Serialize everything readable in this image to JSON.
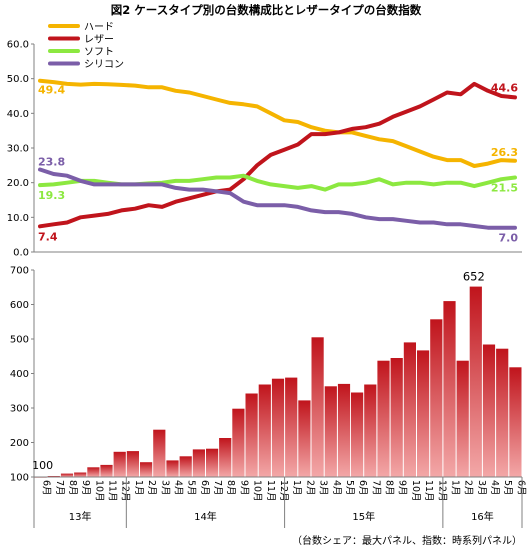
{
  "title": "図2 ケースタイプ別の台数構成比とレザータイプの台数指数",
  "note": "（台数シェア：最大パネル、指数：時系列パネル）",
  "chart_data": [
    {
      "type": "line",
      "ylim": [
        0,
        60
      ],
      "yticks": [
        "0.0",
        "10.0",
        "20.0",
        "30.0",
        "40.0",
        "50.0",
        "60.0"
      ],
      "legend_position": "top-left",
      "series": [
        {
          "name": "ハード",
          "color": "#F5B400",
          "values": [
            49.4,
            49.0,
            48.5,
            48.3,
            48.5,
            48.4,
            48.2,
            48.0,
            47.5,
            47.5,
            46.5,
            46.0,
            45.0,
            44.0,
            43.0,
            42.6,
            42.0,
            40.0,
            38.0,
            37.5,
            36.0,
            35.0,
            34.5,
            34.5,
            33.5,
            32.5,
            32.0,
            30.5,
            29.0,
            27.5,
            26.5,
            26.5,
            24.8,
            25.5,
            26.5,
            26.3
          ],
          "start_label": "49.4",
          "end_label": "26.3"
        },
        {
          "name": "レザー",
          "color": "#C0141C",
          "values": [
            7.4,
            8.0,
            8.5,
            10.0,
            10.5,
            11.0,
            12.0,
            12.5,
            13.5,
            13.0,
            14.5,
            15.5,
            16.5,
            17.5,
            18.0,
            21.0,
            25.0,
            28.0,
            29.5,
            31.0,
            34.0,
            34.0,
            34.5,
            35.5,
            36.0,
            37.0,
            39.0,
            40.5,
            42.0,
            44.0,
            46.0,
            45.5,
            48.5,
            46.5,
            45.0,
            44.6
          ],
          "start_label": "7.4",
          "end_label": "44.6"
        },
        {
          "name": "ソフト",
          "color": "#8CE840",
          "values": [
            19.3,
            19.5,
            20.0,
            20.5,
            20.5,
            20.0,
            19.5,
            19.5,
            19.8,
            20.0,
            20.5,
            20.5,
            21.0,
            21.5,
            21.5,
            22.0,
            20.5,
            19.5,
            19.0,
            18.5,
            19.0,
            18.0,
            19.5,
            19.5,
            20.0,
            21.0,
            19.5,
            20.0,
            20.0,
            19.5,
            20.0,
            20.0,
            19.0,
            20.0,
            21.0,
            21.5
          ],
          "start_label": "19.3",
          "end_label": "21.5"
        },
        {
          "name": "シリコン",
          "color": "#7B5EA8",
          "values": [
            23.8,
            22.5,
            22.0,
            20.5,
            19.5,
            19.5,
            19.5,
            19.5,
            19.5,
            19.5,
            18.5,
            18.0,
            18.0,
            17.5,
            17.0,
            14.5,
            13.5,
            13.5,
            13.5,
            13.0,
            12.0,
            11.5,
            11.5,
            11.0,
            10.0,
            9.5,
            9.5,
            9.0,
            8.5,
            8.5,
            8.0,
            8.0,
            7.5,
            7.0,
            7.0,
            7.0
          ],
          "start_label": "23.8",
          "end_label": "7.0"
        }
      ]
    },
    {
      "type": "bar",
      "ylim": [
        100,
        700
      ],
      "yticks": [
        "100",
        "200",
        "300",
        "400",
        "500",
        "600",
        "700"
      ],
      "color": "#C0141C",
      "categories": [
        "6月",
        "7月",
        "8月",
        "9月",
        "10月",
        "11月",
        "12月",
        "1月",
        "2月",
        "3月",
        "4月",
        "5月",
        "6月",
        "7月",
        "8月",
        "9月",
        "10月",
        "11月",
        "12月",
        "1月",
        "2月",
        "3月",
        "4月",
        "5月",
        "6月",
        "7月",
        "8月",
        "9月",
        "10月",
        "11月",
        "12月",
        "1月",
        "2月",
        "3月",
        "4月",
        "5月",
        "6月"
      ],
      "values": [
        100,
        103,
        110,
        113,
        128,
        135,
        173,
        175,
        143,
        237,
        148,
        160,
        180,
        182,
        213,
        298,
        342,
        368,
        385,
        388,
        322,
        505,
        363,
        370,
        345,
        368,
        437,
        445,
        490,
        467,
        557,
        610,
        437,
        652,
        484,
        472,
        418
      ],
      "data_labels": {
        "first": "100",
        "peak": "652"
      },
      "year_groups": [
        {
          "label": "13年",
          "months": 7
        },
        {
          "label": "14年",
          "months": 12
        },
        {
          "label": "15年",
          "months": 12
        },
        {
          "label": "16年",
          "months": 6
        }
      ]
    }
  ]
}
